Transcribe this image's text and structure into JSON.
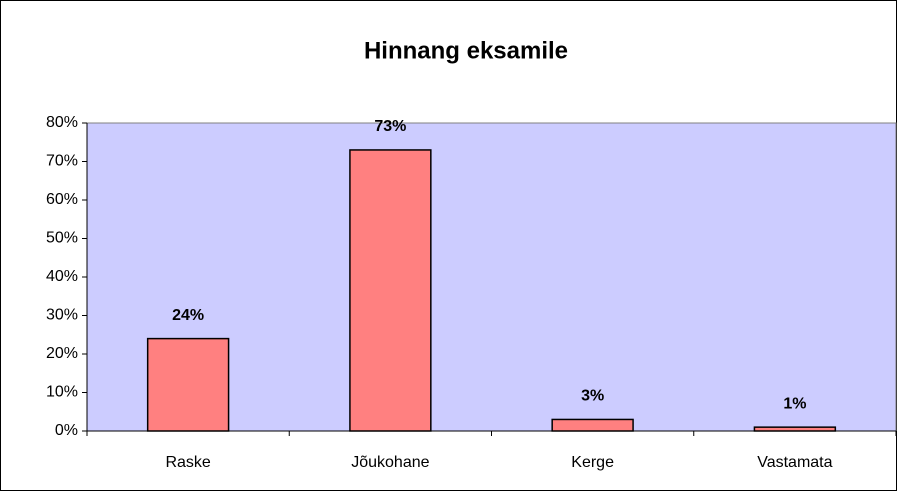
{
  "chart_data": {
    "type": "bar",
    "title": "Hinnang eksamile",
    "categories": [
      "Raske",
      "Jõukohane",
      "Kerge",
      "Vastamata"
    ],
    "values": [
      24,
      73,
      3,
      1
    ],
    "value_labels": [
      "24%",
      "73%",
      "3%",
      "1%"
    ],
    "color": "#ff8080",
    "plot_background": "#ccccff",
    "ylim": [
      0,
      80
    ],
    "yticks": [
      {
        "value": 0,
        "label": "0%"
      },
      {
        "value": 10,
        "label": "10%"
      },
      {
        "value": 20,
        "label": "20%"
      },
      {
        "value": 30,
        "label": "30%"
      },
      {
        "value": 40,
        "label": "40%"
      },
      {
        "value": 50,
        "label": "50%"
      },
      {
        "value": 60,
        "label": "60%"
      },
      {
        "value": 70,
        "label": "70%"
      },
      {
        "value": 80,
        "label": "80%"
      }
    ],
    "grid": false
  }
}
